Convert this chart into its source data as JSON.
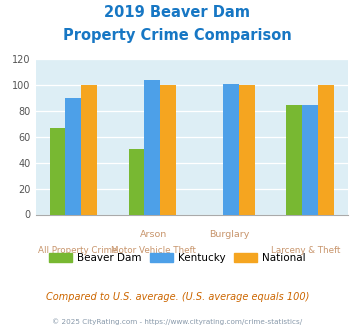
{
  "title_line1": "2019 Beaver Dam",
  "title_line2": "Property Crime Comparison",
  "title_color": "#1777c4",
  "color_beaver": "#78b832",
  "color_kentucky": "#4da0e8",
  "color_national": "#f5a520",
  "ylim": [
    0,
    120
  ],
  "yticks": [
    0,
    20,
    40,
    60,
    80,
    100,
    120
  ],
  "background_color": "#ddeef5",
  "groups": 4,
  "beaver_dam": [
    67,
    51,
    0,
    85
  ],
  "kentucky": [
    90,
    104,
    101,
    85
  ],
  "national": [
    100,
    100,
    100,
    100
  ],
  "label_row1": [
    "",
    "Arson",
    "Burglary",
    ""
  ],
  "label_row2": [
    "All Property Crime",
    "Motor Vehicle Theft",
    "",
    "Larceny & Theft"
  ],
  "label_color": "#c8956c",
  "legend_labels": [
    "Beaver Dam",
    "Kentucky",
    "National"
  ],
  "footer_text": "Compared to U.S. average. (U.S. average equals 100)",
  "footer_color": "#cc6600",
  "copyright_text": "© 2025 CityRating.com - https://www.cityrating.com/crime-statistics/",
  "copyright_color": "#8899aa"
}
